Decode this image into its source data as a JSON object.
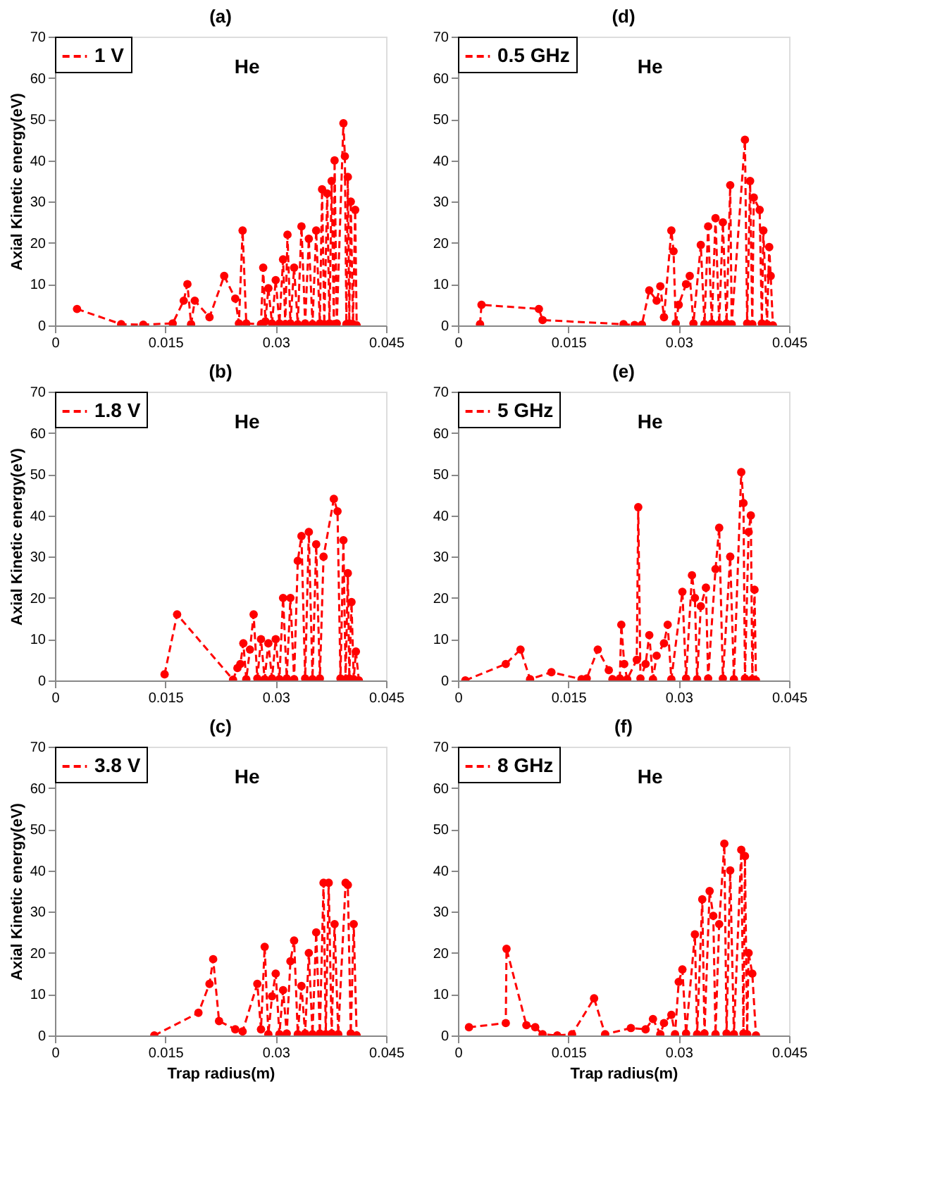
{
  "chart_data": [
    {
      "type": "line",
      "title": "(a)",
      "ylabel": "Axial Kinetic energy(eV)",
      "annotations": [
        "He"
      ],
      "legend": "top left",
      "marker": "circle",
      "line_style": "dashed",
      "xlim": [
        0,
        0.045
      ],
      "xticks": [
        0,
        0.015,
        0.03,
        0.045
      ],
      "ylim": [
        0,
        70
      ],
      "yticks": [
        0,
        10,
        20,
        30,
        40,
        50,
        60,
        70
      ],
      "series": [
        {
          "name": "1 V",
          "color": "#ff0000",
          "x": [
            0.003,
            0.009,
            0.012,
            0.016,
            0.0175,
            0.018,
            0.0185,
            0.019,
            0.021,
            0.023,
            0.0245,
            0.025,
            0.0255,
            0.026,
            0.028,
            0.0283,
            0.0286,
            0.029,
            0.0295,
            0.03,
            0.0305,
            0.031,
            0.0313,
            0.0316,
            0.032,
            0.0325,
            0.033,
            0.0335,
            0.034,
            0.0345,
            0.035,
            0.0355,
            0.036,
            0.0363,
            0.0366,
            0.037,
            0.0373,
            0.0376,
            0.0379,
            0.038,
            0.0383,
            0.0392,
            0.0394,
            0.0396,
            0.0398,
            0.04,
            0.0402,
            0.0405,
            0.0408,
            0.041
          ],
          "values": [
            4,
            0.3,
            0.2,
            0.5,
            6,
            10,
            0.3,
            6,
            2,
            12,
            6.5,
            0.5,
            23,
            0.5,
            0.3,
            14,
            1,
            9,
            0.5,
            11,
            0.5,
            16,
            0.3,
            22,
            0.5,
            14,
            0.3,
            24,
            0.5,
            21,
            0.3,
            23,
            0.5,
            33,
            0.3,
            32,
            0.5,
            35,
            0.3,
            40,
            0.5,
            49,
            41,
            0.3,
            36,
            0.5,
            30,
            0.3,
            28,
            0
          ]
        }
      ]
    },
    {
      "type": "line",
      "title": "(d)",
      "annotations": [
        "He"
      ],
      "legend": "top left",
      "marker": "circle",
      "line_style": "dashed",
      "xlim": [
        0,
        0.045
      ],
      "xticks": [
        0,
        0.015,
        0.03,
        0.045
      ],
      "ylim": [
        0,
        70
      ],
      "yticks": [
        0,
        10,
        20,
        30,
        40,
        50,
        60,
        70
      ],
      "series": [
        {
          "name": "0.5 GHz",
          "color": "#ff0000",
          "x": [
            0.003,
            0.0032,
            0.011,
            0.0115,
            0.0225,
            0.024,
            0.025,
            0.026,
            0.027,
            0.0275,
            0.028,
            0.029,
            0.0293,
            0.0296,
            0.03,
            0.031,
            0.0315,
            0.032,
            0.033,
            0.0335,
            0.034,
            0.0345,
            0.035,
            0.0355,
            0.036,
            0.0365,
            0.037,
            0.0372,
            0.039,
            0.0393,
            0.0397,
            0.04,
            0.0402,
            0.041,
            0.0413,
            0.0415,
            0.042,
            0.0423,
            0.0425,
            0.0428
          ],
          "values": [
            0.3,
            5,
            4,
            1.3,
            0.3,
            0.1,
            0.2,
            8.5,
            6,
            9.5,
            2,
            23,
            18,
            0.5,
            5,
            10,
            12,
            0.5,
            19.5,
            0.3,
            24,
            0.5,
            26,
            0.3,
            25,
            0.5,
            34,
            0.3,
            45,
            0.5,
            35,
            0.3,
            31,
            28,
            0.5,
            23,
            0.3,
            19,
            12,
            0
          ]
        }
      ]
    },
    {
      "type": "line",
      "title": "(b)",
      "ylabel": "Axial Kinetic energy(eV)",
      "annotations": [
        "He"
      ],
      "legend": "top left",
      "marker": "circle",
      "line_style": "dashed",
      "xlim": [
        0,
        0.045
      ],
      "xticks": [
        0,
        0.015,
        0.03,
        0.045
      ],
      "ylim": [
        0,
        70
      ],
      "yticks": [
        0,
        10,
        20,
        30,
        40,
        50,
        60,
        70
      ],
      "series": [
        {
          "name": "1.8 V",
          "color": "#ff0000",
          "x": [
            0.0149,
            0.0166,
            0.0242,
            0.0248,
            0.0252,
            0.0256,
            0.026,
            0.0265,
            0.027,
            0.0275,
            0.028,
            0.0285,
            0.029,
            0.0295,
            0.03,
            0.0305,
            0.031,
            0.0315,
            0.032,
            0.0325,
            0.033,
            0.0335,
            0.034,
            0.0345,
            0.035,
            0.0355,
            0.036,
            0.0365,
            0.0379,
            0.0384,
            0.0388,
            0.0392,
            0.0395,
            0.0398,
            0.04,
            0.0403,
            0.0406,
            0.0409,
            0.0413
          ],
          "values": [
            1.5,
            16,
            0.2,
            3,
            4,
            9,
            0.3,
            7.5,
            16,
            0.5,
            10,
            0.3,
            9,
            0.5,
            10,
            0.3,
            20,
            0.5,
            20,
            0.3,
            29,
            35,
            0.5,
            36,
            0.3,
            33,
            0.5,
            30,
            44,
            41,
            0.5,
            34,
            0.3,
            26,
            0.5,
            19,
            0.3,
            7,
            0
          ]
        }
      ]
    },
    {
      "type": "line",
      "title": "(e)",
      "annotations": [
        "He"
      ],
      "legend": "top left",
      "marker": "circle",
      "line_style": "dashed",
      "xlim": [
        0,
        0.045
      ],
      "xticks": [
        0,
        0.015,
        0.03,
        0.045
      ],
      "ylim": [
        0,
        70
      ],
      "yticks": [
        0,
        10,
        20,
        30,
        40,
        50,
        60,
        70
      ],
      "series": [
        {
          "name": "5 GHz",
          "color": "#ff0000",
          "x": [
            0.001,
            0.0065,
            0.0085,
            0.0098,
            0.0127,
            0.0168,
            0.0175,
            0.019,
            0.0205,
            0.021,
            0.022,
            0.0222,
            0.0226,
            0.023,
            0.0243,
            0.0245,
            0.0248,
            0.0255,
            0.026,
            0.0265,
            0.027,
            0.028,
            0.0285,
            0.029,
            0.0305,
            0.031,
            0.0318,
            0.0322,
            0.0325,
            0.033,
            0.0337,
            0.034,
            0.035,
            0.0355,
            0.036,
            0.037,
            0.0375,
            0.0385,
            0.0388,
            0.039,
            0.0395,
            0.0398,
            0.04,
            0.0403,
            0.0405
          ],
          "values": [
            0,
            4,
            7.5,
            0.3,
            2,
            0.3,
            0.5,
            7.5,
            2.5,
            0.3,
            0.5,
            13.5,
            4,
            0.3,
            5,
            42,
            0.5,
            4,
            11,
            0.3,
            6,
            9,
            13.5,
            0.3,
            21.5,
            0.5,
            25.5,
            20,
            0.3,
            18,
            22.5,
            0.5,
            27,
            37,
            0.5,
            30,
            0.3,
            50.5,
            43,
            0.5,
            36,
            40,
            0.3,
            22,
            0
          ]
        }
      ]
    },
    {
      "type": "line",
      "title": "(c)",
      "xlabel": "Trap radius(m)",
      "ylabel": "Axial Kinetic energy(eV)",
      "annotations": [
        "He"
      ],
      "legend": "top left",
      "marker": "circle",
      "line_style": "dashed",
      "xlim": [
        0,
        0.045
      ],
      "xticks": [
        0,
        0.015,
        0.03,
        0.045
      ],
      "ylim": [
        0,
        70
      ],
      "yticks": [
        0,
        10,
        20,
        30,
        40,
        50,
        60,
        70
      ],
      "series": [
        {
          "name": "3.8 V",
          "color": "#ff0000",
          "x": [
            0.0135,
            0.0195,
            0.021,
            0.0215,
            0.0223,
            0.0245,
            0.0255,
            0.0275,
            0.028,
            0.0285,
            0.029,
            0.0295,
            0.03,
            0.0305,
            0.031,
            0.0315,
            0.032,
            0.0325,
            0.033,
            0.0335,
            0.034,
            0.0345,
            0.035,
            0.0355,
            0.036,
            0.0365,
            0.0368,
            0.0372,
            0.0376,
            0.038,
            0.0385,
            0.0395,
            0.0398,
            0.0402,
            0.0406,
            0.041
          ],
          "values": [
            0,
            5.5,
            12.5,
            18.5,
            3.5,
            1.5,
            1,
            12.5,
            1.5,
            21.5,
            0.3,
            9.5,
            15,
            0.3,
            11,
            0.5,
            18,
            23,
            0.3,
            12,
            0.5,
            20,
            0.3,
            25,
            0.5,
            37,
            0.3,
            37,
            0.5,
            27,
            0.3,
            37,
            36.5,
            0.5,
            27,
            0
          ]
        }
      ]
    },
    {
      "type": "line",
      "title": "(f)",
      "xlabel": "Trap radius(m)",
      "annotations": [
        "He"
      ],
      "legend": "top left",
      "marker": "circle",
      "line_style": "dashed",
      "xlim": [
        0,
        0.045
      ],
      "xticks": [
        0,
        0.015,
        0.03,
        0.045
      ],
      "ylim": [
        0,
        70
      ],
      "yticks": [
        0,
        10,
        20,
        30,
        40,
        50,
        60,
        70
      ],
      "series": [
        {
          "name": "8 GHz",
          "color": "#ff0000",
          "x": [
            0.0015,
            0.0065,
            0.0066,
            0.0093,
            0.0105,
            0.0115,
            0.0135,
            0.0155,
            0.0185,
            0.02,
            0.0235,
            0.0255,
            0.0265,
            0.0275,
            0.028,
            0.029,
            0.0295,
            0.03,
            0.0305,
            0.031,
            0.0322,
            0.0325,
            0.0332,
            0.0335,
            0.0342,
            0.0347,
            0.035,
            0.0355,
            0.0362,
            0.0365,
            0.037,
            0.0375,
            0.0385,
            0.0388,
            0.039,
            0.0393,
            0.0395,
            0.04,
            0.0405
          ],
          "values": [
            2,
            3,
            21,
            2.5,
            2,
            0.3,
            0,
            0.3,
            9,
            0.3,
            1.8,
            1.5,
            4,
            0.3,
            3,
            5,
            0.3,
            13,
            16,
            0.5,
            24.5,
            0.3,
            33,
            0.5,
            35,
            29,
            0.3,
            27,
            46.5,
            0.5,
            40,
            0.3,
            45,
            0.5,
            43.5,
            0.3,
            20,
            15,
            0
          ]
        }
      ]
    }
  ]
}
